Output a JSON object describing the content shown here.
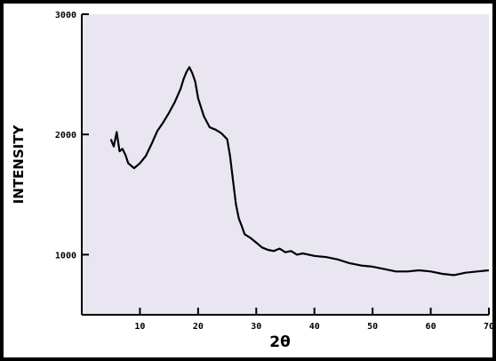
{
  "chart_data": {
    "type": "line",
    "title": "",
    "xlabel": "2θ",
    "ylabel": "INTENSITY",
    "xlim": [
      0,
      70
    ],
    "ylim": [
      500,
      3000
    ],
    "x_ticks": [
      10,
      20,
      30,
      40,
      50,
      60,
      70
    ],
    "x_tick_labels": [
      "10",
      "20",
      "30",
      "40",
      "50",
      "60",
      "70"
    ],
    "y_ticks": [
      1000,
      2000,
      3000
    ],
    "y_tick_labels": [
      "1000",
      "2000",
      "3000"
    ],
    "grid": false,
    "legend": "none",
    "colors": {
      "line": "#000000",
      "plot_bg": "#e9e6f1",
      "frame": "#000000"
    },
    "series": [
      {
        "x": [
          5,
          5.5,
          6,
          6.5,
          7,
          7.5,
          8,
          9,
          10,
          11,
          12,
          13,
          14,
          15,
          16,
          17,
          17.5,
          18,
          18.5,
          19,
          19.5,
          20,
          21,
          22,
          23,
          24,
          25,
          25.5,
          26,
          26.5,
          27,
          27.5,
          28,
          29,
          30,
          31,
          32,
          33,
          34,
          35,
          36,
          37,
          38,
          40,
          42,
          44,
          46,
          48,
          50,
          52,
          54,
          56,
          58,
          60,
          62,
          64,
          66,
          68,
          70
        ],
        "y": [
          1960,
          1900,
          2020,
          1860,
          1880,
          1830,
          1760,
          1720,
          1760,
          1820,
          1920,
          2030,
          2100,
          2180,
          2270,
          2380,
          2460,
          2520,
          2560,
          2510,
          2440,
          2300,
          2150,
          2060,
          2040,
          2010,
          1960,
          1820,
          1620,
          1420,
          1300,
          1240,
          1170,
          1140,
          1100,
          1060,
          1040,
          1030,
          1050,
          1020,
          1030,
          1000,
          1010,
          990,
          980,
          960,
          930,
          910,
          900,
          880,
          860,
          860,
          870,
          860,
          840,
          830,
          850,
          860,
          870
        ]
      }
    ]
  }
}
